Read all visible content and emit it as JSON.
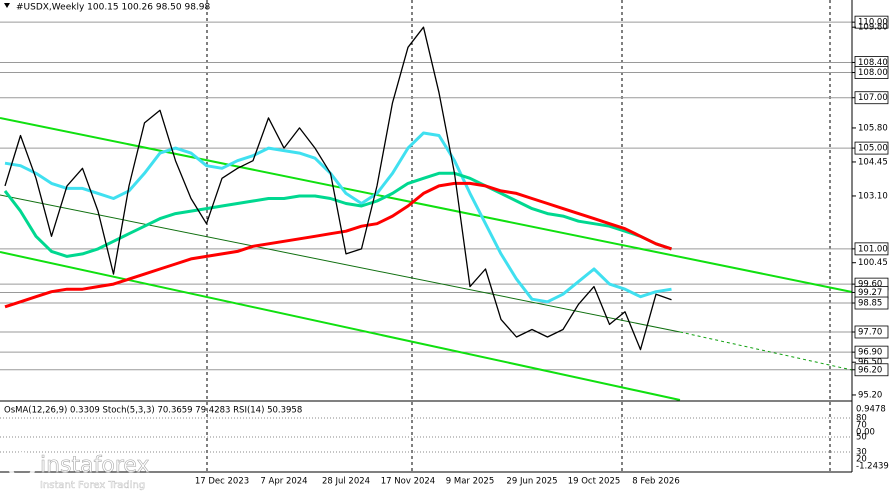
{
  "chart_data": {
    "type": "line",
    "title": "#USDX,Weekly  100.15 100.26 98.50 98.98",
    "indicator_title": "OsMA(12,26,9) 0.3309  Stoch(5,3,3) 70.3659 79.4283  RSI(14) 50.3958",
    "indicator_axis": [
      "0.9478",
      "80",
      "70",
      "0.00",
      "50",
      "30",
      "20",
      "-1.2439"
    ],
    "watermark": {
      "brand": "instaforex",
      "tagline": "Instant Forex Trading"
    },
    "categories": [
      null,
      null,
      null,
      null,
      null,
      null,
      null,
      null,
      null,
      null,
      null,
      null,
      null,
      null,
      "17 Dec 2023",
      null,
      null,
      null,
      "7 Apr 2024",
      null,
      null,
      null,
      "28 Jul 2024",
      null,
      null,
      null,
      "17 Nov 2024",
      null,
      null,
      null,
      "9 Mar 2025",
      null,
      null,
      null,
      "29 Jun 2025",
      null,
      null,
      null,
      "19 Oct 2025",
      null,
      null,
      null,
      "8 Feb 2026",
      null
    ],
    "series": [
      {
        "color": "#000000",
        "values": [
          103.5,
          105.5,
          103.8,
          101.5,
          103.5,
          104.2,
          102.5,
          100.0,
          103.5,
          106.0,
          106.5,
          104.5,
          103.0,
          102.0,
          103.8,
          104.2,
          104.5,
          106.2,
          105.0,
          105.8,
          105.0,
          104.0,
          100.8,
          101.0,
          103.5,
          106.8,
          109.0,
          109.8,
          107.2,
          104.0,
          99.5,
          100.2,
          98.2,
          97.5,
          97.8,
          97.5,
          97.8,
          98.8,
          99.5,
          98.0,
          98.5,
          97.0,
          99.2,
          98.98
        ]
      },
      {
        "color": "#40e0f0",
        "values": [
          104.4,
          104.3,
          104.0,
          103.6,
          103.4,
          103.4,
          103.2,
          103.0,
          103.3,
          104.0,
          104.8,
          105.0,
          104.8,
          104.3,
          104.2,
          104.5,
          104.7,
          105.0,
          104.9,
          104.8,
          104.6,
          104.0,
          103.2,
          102.8,
          103.2,
          104.0,
          105.0,
          105.6,
          105.5,
          104.5,
          103.2,
          102.0,
          100.8,
          99.8,
          99.0,
          98.9,
          99.2,
          99.7,
          100.2,
          99.6,
          99.4,
          99.1,
          99.3,
          99.4
        ]
      },
      {
        "color": "#00d890",
        "values": [
          103.3,
          102.5,
          101.5,
          100.9,
          100.7,
          100.8,
          101.0,
          101.3,
          101.6,
          101.9,
          102.2,
          102.4,
          102.5,
          102.6,
          102.7,
          102.8,
          102.9,
          103.0,
          103.0,
          103.1,
          103.1,
          103.0,
          102.8,
          102.7,
          102.9,
          103.2,
          103.6,
          103.8,
          104.0,
          104.0,
          103.8,
          103.5,
          103.2,
          102.9,
          102.6,
          102.4,
          102.3,
          102.1,
          102.0,
          101.9,
          101.7,
          101.5,
          101.2,
          101.0
        ]
      },
      {
        "color": "#ff0000",
        "values": [
          98.7,
          98.9,
          99.1,
          99.3,
          99.4,
          99.4,
          99.5,
          99.6,
          99.8,
          100.0,
          100.2,
          100.4,
          100.6,
          100.7,
          100.8,
          100.9,
          101.1,
          101.2,
          101.3,
          101.4,
          101.5,
          101.6,
          101.7,
          101.9,
          102.0,
          102.3,
          102.7,
          103.2,
          103.5,
          103.6,
          103.6,
          103.5,
          103.3,
          103.2,
          103.0,
          102.8,
          102.6,
          102.4,
          102.2,
          102.0,
          101.8,
          101.5,
          101.2,
          101.0
        ]
      }
    ],
    "ylim": [
      95.0,
      110.8
    ],
    "yticks": [
      {
        "value": 110.0,
        "label": "110.00"
      },
      {
        "value": 109.8,
        "label": "109.80"
      },
      {
        "value": 108.4,
        "label": "108.40"
      },
      {
        "value": 108.0,
        "label": "108.00"
      },
      {
        "value": 107.0,
        "label": "107.00"
      },
      {
        "value": 105.8,
        "label": "105.80"
      },
      {
        "value": 105.0,
        "label": "105.00"
      },
      {
        "value": 104.45,
        "label": "104.45"
      },
      {
        "value": 103.1,
        "label": "103.10"
      },
      {
        "value": 101.0,
        "label": "101.00"
      },
      {
        "value": 100.45,
        "label": "100.45"
      },
      {
        "value": 99.6,
        "label": "99.60"
      },
      {
        "value": 99.27,
        "label": "99.27"
      },
      {
        "value": 98.85,
        "label": "98.85"
      },
      {
        "value": 97.7,
        "label": "97.70"
      },
      {
        "value": 96.9,
        "label": "96.90"
      },
      {
        "value": 96.5,
        "label": "96.50"
      },
      {
        "value": 96.2,
        "label": "96.20"
      },
      {
        "value": 95.2,
        "label": "95.20"
      }
    ],
    "levels": [
      110.0,
      108.4,
      108.0,
      107.0,
      105.0,
      101.0,
      99.6,
      99.27,
      98.85,
      97.7,
      96.9,
      96.2
    ]
  }
}
